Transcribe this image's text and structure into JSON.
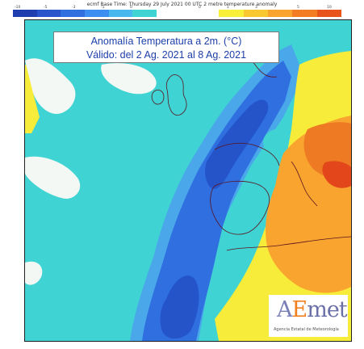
{
  "header": {
    "caption": "ecmf  Base Time: Thursday 29 July 2021 00 UTC 2 metre temperature anomaly"
  },
  "legend": {
    "cool_colors": [
      "#1f3fb0",
      "#2a54cc",
      "#2f6fe0",
      "#3c8ff0",
      "#49b8ee",
      "#3fd3d3"
    ],
    "warm_colors": [
      "#ffffff",
      "#f8ef3a",
      "#f9c72f",
      "#f8a42e",
      "#f27d25",
      "#e8541b"
    ],
    "tick_labels": [
      "-10",
      "-5",
      "-3",
      "-1",
      "0",
      "0",
      "1",
      "3",
      "5",
      "10"
    ]
  },
  "title": {
    "line1": "Anomalía Temperatura a 2m. (°C)",
    "line2": "Válido: del 2 Ag. 2021 al 8 Ag. 2021"
  },
  "logo": {
    "text": "AEMet",
    "subtitle": "Agencia Estatal de Meteorología"
  },
  "map_colors": {
    "cyan": "#3fd3d3",
    "light_blue": "#4aa8ea",
    "mid_blue": "#2f6fe0",
    "deep_blue": "#2454c8",
    "white": "#f4f8f4",
    "yellow": "#f8ec3a",
    "orange": "#f8a42e",
    "dark_orange": "#ee7a24",
    "red": "#e2461a",
    "coast": "#5a1420"
  }
}
